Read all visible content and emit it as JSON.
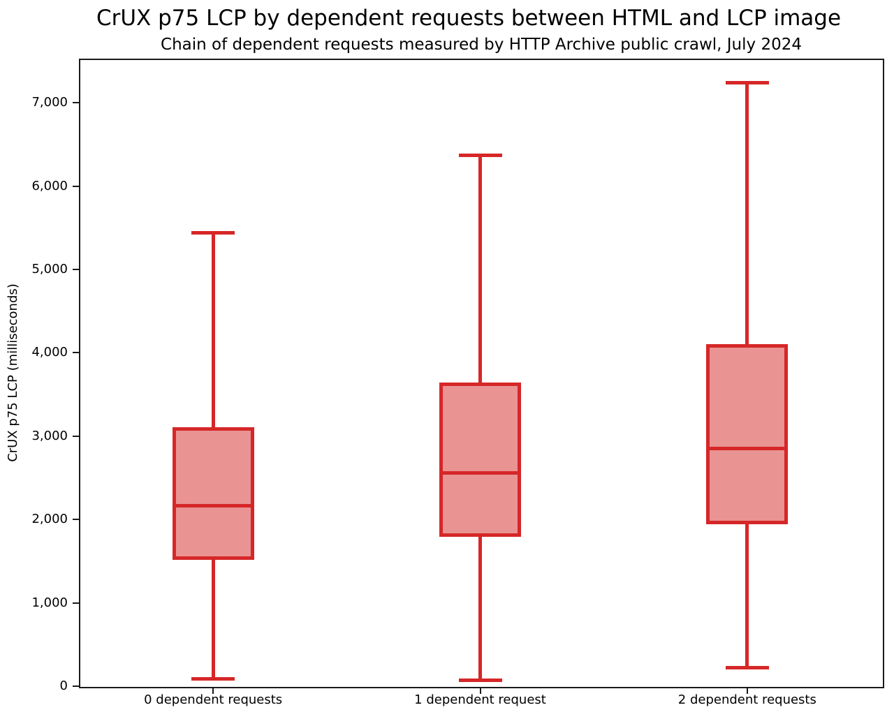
{
  "figure": {
    "title": "CrUX p75 LCP by dependent requests between HTML and LCP image",
    "subtitle": "Chain of dependent requests measured by HTTP Archive public crawl, July 2024"
  },
  "chart_data": {
    "type": "boxplot",
    "title": "CrUX p75 LCP by dependent requests between HTML and LCP image",
    "subtitle": "Chain of dependent requests measured by HTTP Archive public crawl, July 2024",
    "xlabel": "",
    "ylabel": "CrUX p75 LCP (milliseconds)",
    "categories": [
      "0 dependent requests",
      "1 dependent request",
      "2 dependent requests"
    ],
    "series": [
      {
        "name": "0 dependent requests",
        "whisker_low": 90,
        "q1": 1540,
        "median": 2165,
        "q3": 3090,
        "whisker_high": 5435
      },
      {
        "name": "1 dependent request",
        "whisker_low": 75,
        "q1": 1810,
        "median": 2560,
        "q3": 3620,
        "whisker_high": 6365
      },
      {
        "name": "2 dependent requests",
        "whisker_low": 220,
        "q1": 1965,
        "median": 2850,
        "q3": 4085,
        "whisker_high": 7240
      }
    ],
    "ylim": [
      0,
      7520
    ],
    "yticks": [
      0,
      1000,
      2000,
      3000,
      4000,
      5000,
      6000,
      7000
    ],
    "ytick_labels": [
      "0",
      "1,000",
      "2,000",
      "3,000",
      "4,000",
      "5,000",
      "6,000",
      "7,000"
    ],
    "grid": false,
    "legend": null,
    "colors": {
      "box_edge": "#d62728",
      "box_fill": "#ea9393",
      "axis": "#1a1a1a",
      "text": "#000000",
      "background": "#ffffff"
    }
  }
}
